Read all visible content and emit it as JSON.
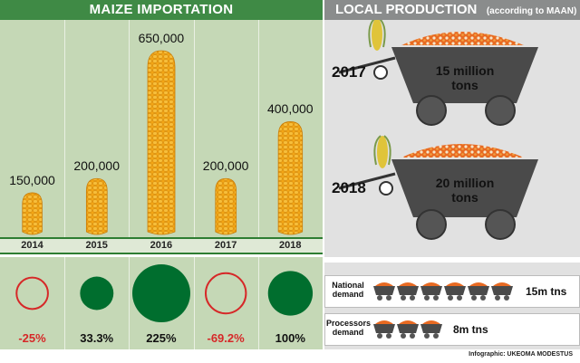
{
  "colors": {
    "header_green": "#3f8a45",
    "panel_green": "#c5d8b6",
    "header_gray": "#8a8c8c",
    "panel_gray": "#e1e1e1",
    "positive": "#006e2e",
    "negative": "#d62828",
    "corn": "#f2a515",
    "ore": "#e86a22"
  },
  "left": {
    "title": "MAIZE IMPORTATION"
  },
  "right": {
    "title": "LOCAL PRODUCTION",
    "subtitle": "(according to MAAN)",
    "production": [
      {
        "year": "2017",
        "line1": "15 million",
        "line2": "tons"
      },
      {
        "year": "2018",
        "line1": "20 million",
        "line2": "tons"
      }
    ],
    "demand": [
      {
        "label_line1": "National",
        "label_line2": "demand",
        "amount": "15m tns",
        "carts": 6
      },
      {
        "label_line1": "Processors",
        "label_line2": "demand",
        "amount": "8m tns",
        "carts": 3
      }
    ]
  },
  "chart_data": [
    {
      "type": "bar",
      "title": "MAIZE IMPORTATION",
      "categories": [
        "2014",
        "2015",
        "2016",
        "2017",
        "2018"
      ],
      "values": [
        150000,
        200000,
        650000,
        200000,
        400000
      ],
      "value_labels": [
        "150,000",
        "200,000",
        "650,000",
        "200,000",
        "400,000"
      ],
      "ylim": [
        0,
        650000
      ]
    },
    {
      "type": "scatter",
      "categories": [
        "2014",
        "2015",
        "2016",
        "2017",
        "2018"
      ],
      "values": [
        -25,
        33.3,
        225,
        -69.2,
        100
      ],
      "value_labels": [
        "-25%",
        "33.3%",
        "225%",
        "-69.2%",
        "100%"
      ]
    }
  ],
  "credit": "Infographic: UKEOMA MODESTUS"
}
